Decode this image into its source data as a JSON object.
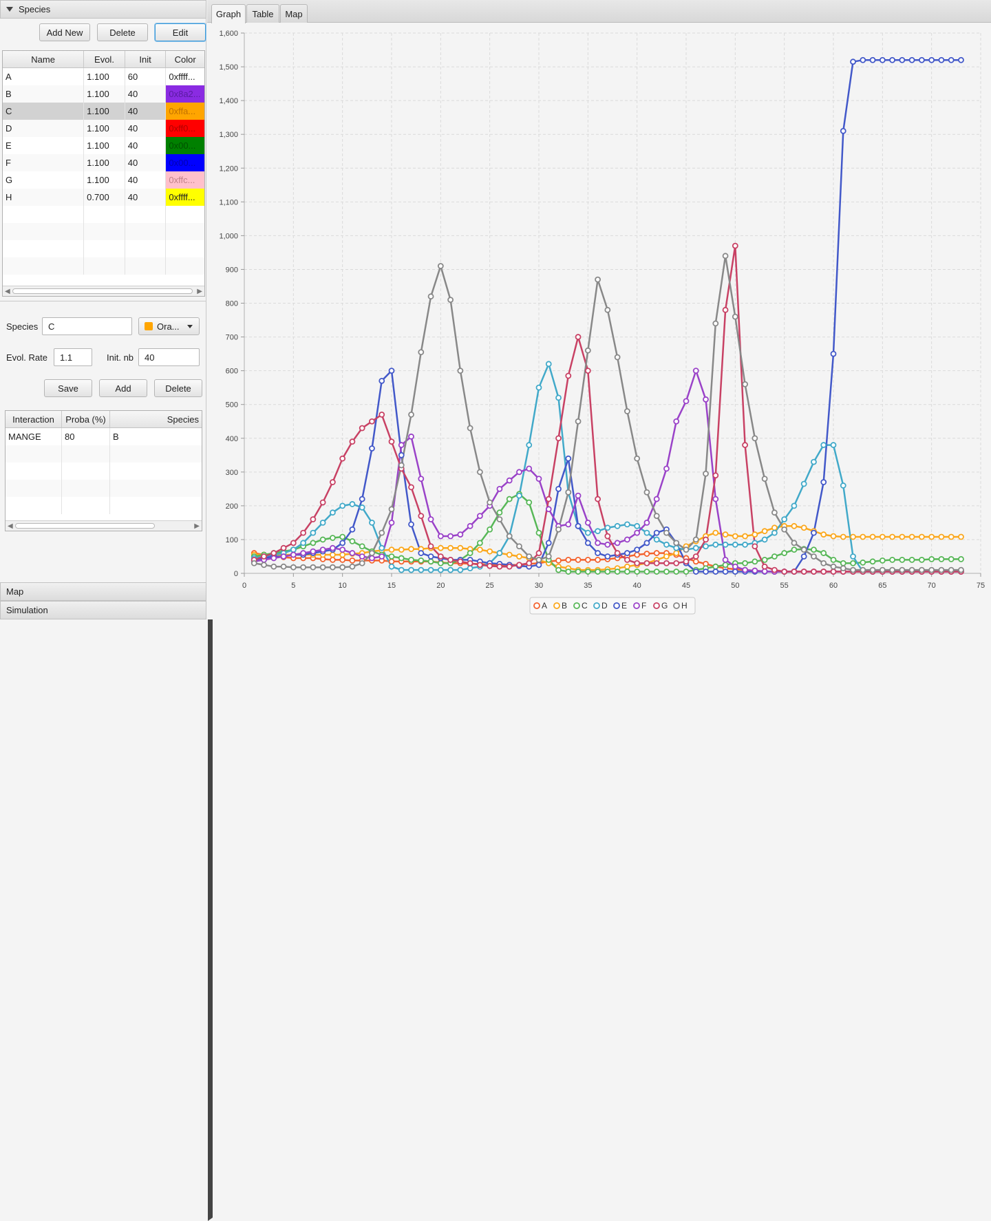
{
  "left": {
    "species_pane_title": "Species",
    "map_pane_title": "Map",
    "simulation_pane_title": "Simulation",
    "toolbar": {
      "add_new": "Add New",
      "delete": "Delete",
      "edit": "Edit"
    },
    "species_table": {
      "columns": [
        "Name",
        "Evol.",
        "Init",
        "Color"
      ],
      "rows": [
        {
          "name": "A",
          "evol": "1.100",
          "init": "60",
          "color_text": "0xffff...",
          "color_bg": "#ffffff",
          "color_fg": "#222222"
        },
        {
          "name": "B",
          "evol": "1.100",
          "init": "40",
          "color_text": "0x8a2...",
          "color_bg": "#8a2be2",
          "color_fg": "#5a1ba2"
        },
        {
          "name": "C",
          "evol": "1.100",
          "init": "40",
          "color_text": "0xffa...",
          "color_bg": "#ffa500",
          "color_fg": "#c07000"
        },
        {
          "name": "D",
          "evol": "1.100",
          "init": "40",
          "color_text": "0xff0...",
          "color_bg": "#ff0000",
          "color_fg": "#b00000"
        },
        {
          "name": "E",
          "evol": "1.100",
          "init": "40",
          "color_text": "0x00...",
          "color_bg": "#008000",
          "color_fg": "#005000"
        },
        {
          "name": "F",
          "evol": "1.100",
          "init": "40",
          "color_text": "0x00...",
          "color_bg": "#0000ff",
          "color_fg": "#0000b0"
        },
        {
          "name": "G",
          "evol": "1.100",
          "init": "40",
          "color_text": "0xffc...",
          "color_bg": "#ffc0cb",
          "color_fg": "#c08088"
        },
        {
          "name": "H",
          "evol": "0.700",
          "init": "40",
          "color_text": "0xffff...",
          "color_bg": "#ffff00",
          "color_fg": "#222222"
        }
      ],
      "selected_row": "C"
    },
    "form": {
      "species_label": "Species",
      "species_value": "C",
      "color_picker_label": "Ora...",
      "color_picker_swatch": "#ffa500",
      "evol_rate_label": "Evol. Rate",
      "evol_rate_value": "1.1",
      "init_nb_label": "Init. nb",
      "init_nb_value": "40",
      "save": "Save",
      "add": "Add",
      "delete": "Delete"
    },
    "interaction_table": {
      "columns": [
        "Interaction",
        "Proba (%)",
        "Species"
      ],
      "rows": [
        {
          "interaction": "MANGE",
          "proba": "80",
          "species": "B"
        }
      ]
    }
  },
  "tabs": [
    "Graph",
    "Table",
    "Map"
  ],
  "active_tab": "Graph",
  "chart_data": {
    "type": "line",
    "title": "",
    "xlabel": "",
    "ylabel": "",
    "xlim": [
      0,
      75
    ],
    "ylim": [
      0,
      1600
    ],
    "x_ticks": [
      0,
      5,
      10,
      15,
      20,
      25,
      30,
      35,
      40,
      45,
      50,
      55,
      60,
      65,
      70,
      75
    ],
    "y_ticks": [
      0,
      100,
      200,
      300,
      400,
      500,
      600,
      700,
      800,
      900,
      1000,
      1100,
      1200,
      1300,
      1400,
      1500,
      1600
    ],
    "y_tick_labels": [
      "0",
      "100",
      "200",
      "300",
      "400",
      "500",
      "600",
      "700",
      "800",
      "900",
      "1,000",
      "1,100",
      "1,200",
      "1,300",
      "1,400",
      "1,500",
      "1,600"
    ],
    "grid": true,
    "legend_position": "bottom",
    "x_start": 1,
    "series": [
      {
        "name": "A",
        "color": "#f3622d",
        "values": [
          60,
          55,
          50,
          48,
          45,
          45,
          45,
          42,
          40,
          40,
          38,
          38,
          38,
          38,
          35,
          35,
          35,
          35,
          35,
          32,
          30,
          30,
          28,
          28,
          25,
          25,
          25,
          25,
          28,
          30,
          35,
          38,
          40,
          40,
          40,
          40,
          42,
          45,
          50,
          55,
          58,
          60,
          60,
          55,
          45,
          35,
          28,
          20,
          15,
          12,
          10,
          8,
          6,
          5,
          5,
          5,
          5,
          5,
          5,
          5,
          5,
          5,
          5,
          5,
          5,
          5,
          5,
          5,
          5,
          5,
          5,
          5,
          5
        ]
      },
      {
        "name": "B",
        "color": "#fba71b",
        "values": [
          55,
          55,
          55,
          55,
          55,
          55,
          55,
          55,
          55,
          55,
          58,
          60,
          65,
          68,
          70,
          70,
          72,
          72,
          75,
          75,
          75,
          75,
          72,
          70,
          65,
          60,
          55,
          50,
          45,
          40,
          30,
          20,
          15,
          10,
          10,
          10,
          12,
          15,
          20,
          25,
          30,
          40,
          50,
          60,
          80,
          95,
          110,
          120,
          115,
          110,
          110,
          115,
          125,
          135,
          140,
          140,
          135,
          125,
          115,
          110,
          108,
          108,
          108,
          108,
          108,
          108,
          108,
          108,
          108,
          108,
          108,
          108,
          108
        ]
      },
      {
        "name": "C",
        "color": "#57b757",
        "values": [
          50,
          55,
          60,
          65,
          70,
          80,
          90,
          100,
          105,
          108,
          95,
          80,
          65,
          55,
          50,
          45,
          40,
          38,
          35,
          30,
          30,
          40,
          60,
          90,
          130,
          180,
          220,
          235,
          210,
          120,
          40,
          10,
          5,
          5,
          5,
          5,
          5,
          5,
          5,
          5,
          5,
          5,
          5,
          5,
          5,
          10,
          15,
          20,
          25,
          30,
          30,
          35,
          40,
          50,
          60,
          70,
          72,
          70,
          60,
          40,
          30,
          30,
          32,
          35,
          38,
          40,
          40,
          40,
          40,
          42,
          42,
          42,
          42
        ]
      },
      {
        "name": "D",
        "color": "#41a9c9",
        "values": [
          45,
          50,
          55,
          60,
          70,
          90,
          120,
          150,
          180,
          200,
          205,
          195,
          150,
          75,
          20,
          10,
          10,
          10,
          10,
          10,
          10,
          10,
          15,
          20,
          30,
          60,
          110,
          230,
          380,
          550,
          620,
          520,
          240,
          140,
          120,
          125,
          135,
          140,
          145,
          140,
          120,
          100,
          85,
          75,
          70,
          75,
          80,
          85,
          85,
          85,
          85,
          90,
          100,
          120,
          160,
          200,
          265,
          330,
          380,
          380,
          260,
          50,
          5,
          5,
          5,
          5,
          5,
          5,
          5,
          5,
          5,
          5,
          5
        ]
      },
      {
        "name": "E",
        "color": "#4258c9",
        "values": [
          40,
          45,
          50,
          50,
          55,
          55,
          60,
          65,
          70,
          90,
          130,
          220,
          370,
          570,
          600,
          350,
          145,
          60,
          50,
          45,
          40,
          40,
          40,
          35,
          30,
          28,
          25,
          22,
          20,
          25,
          90,
          250,
          340,
          140,
          90,
          60,
          50,
          55,
          60,
          70,
          90,
          120,
          130,
          90,
          30,
          5,
          5,
          5,
          5,
          5,
          5,
          5,
          5,
          5,
          5,
          5,
          50,
          120,
          270,
          650,
          1310,
          1515,
          1520,
          1520,
          1520,
          1520,
          1520,
          1520,
          1520,
          1520,
          1520,
          1520,
          1520
        ]
      },
      {
        "name": "F",
        "color": "#9a42c8",
        "values": [
          35,
          40,
          45,
          50,
          55,
          60,
          65,
          70,
          75,
          70,
          60,
          50,
          45,
          50,
          150,
          380,
          405,
          280,
          160,
          110,
          110,
          115,
          140,
          170,
          200,
          250,
          275,
          300,
          310,
          280,
          190,
          140,
          145,
          230,
          150,
          90,
          85,
          90,
          100,
          120,
          150,
          220,
          310,
          450,
          510,
          600,
          515,
          220,
          40,
          20,
          10,
          8,
          6,
          5,
          5,
          5,
          5,
          5,
          5,
          5,
          5,
          5,
          5,
          5,
          5,
          5,
          5,
          5,
          5,
          5,
          5,
          5,
          5
        ]
      },
      {
        "name": "G",
        "color": "#c84164",
        "values": [
          40,
          50,
          60,
          75,
          90,
          120,
          160,
          210,
          270,
          340,
          390,
          430,
          450,
          470,
          390,
          310,
          255,
          170,
          80,
          50,
          40,
          35,
          30,
          25,
          22,
          20,
          20,
          25,
          30,
          60,
          220,
          400,
          585,
          700,
          600,
          220,
          110,
          60,
          40,
          30,
          30,
          30,
          30,
          30,
          35,
          50,
          100,
          290,
          780,
          970,
          380,
          80,
          20,
          10,
          5,
          5,
          5,
          5,
          5,
          5,
          5,
          5,
          5,
          5,
          5,
          5,
          5,
          5,
          5,
          5,
          5,
          5,
          5
        ]
      },
      {
        "name": "H",
        "color": "#888888",
        "values": [
          30,
          25,
          20,
          20,
          18,
          18,
          18,
          18,
          18,
          18,
          20,
          30,
          60,
          120,
          190,
          320,
          470,
          655,
          820,
          910,
          810,
          600,
          430,
          300,
          210,
          160,
          110,
          80,
          50,
          40,
          50,
          130,
          240,
          450,
          660,
          870,
          780,
          640,
          480,
          340,
          240,
          170,
          120,
          90,
          70,
          100,
          295,
          740,
          940,
          760,
          560,
          400,
          280,
          180,
          130,
          90,
          70,
          50,
          30,
          20,
          15,
          10,
          10,
          10,
          10,
          10,
          10,
          10,
          10,
          10,
          10,
          10,
          10
        ]
      }
    ]
  }
}
